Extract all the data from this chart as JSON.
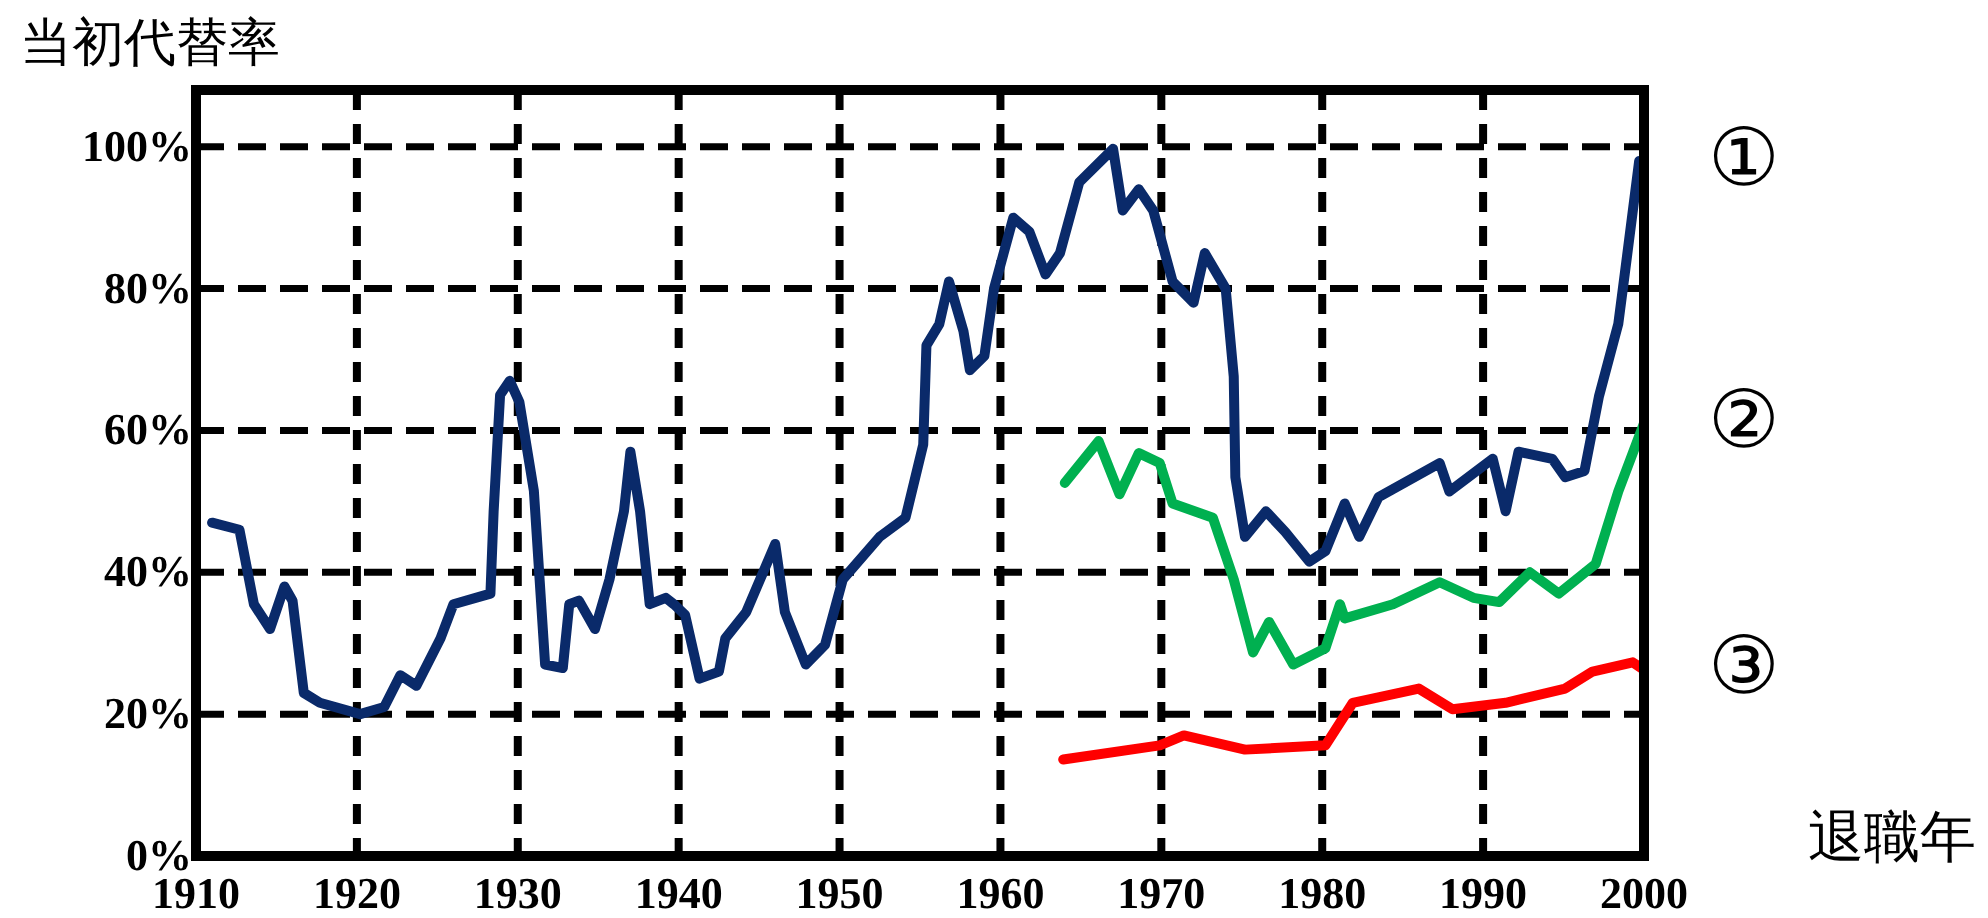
{
  "chart_data": {
    "type": "line",
    "ylabel": "当初代替率",
    "xlabel": "退職年",
    "xlim": [
      1910,
      2000
    ],
    "xticks": [
      1910,
      1920,
      1930,
      1940,
      1950,
      1960,
      1970,
      1980,
      1990,
      2000
    ],
    "ylim": [
      0,
      108
    ],
    "yticks": [
      {
        "value": 0,
        "label": "0%"
      },
      {
        "value": 20,
        "label": "20%"
      },
      {
        "value": 40,
        "label": "40%"
      },
      {
        "value": 60,
        "label": "60%"
      },
      {
        "value": 80,
        "label": "80%"
      },
      {
        "value": 100,
        "label": "100%"
      }
    ],
    "grid": true,
    "series": [
      {
        "name": "①",
        "color": "#0a2a6a",
        "x": [
          1911,
          1912.7,
          1913.6,
          1914.6,
          1915.5,
          1916,
          1916.7,
          1917.7,
          1920.2,
          1921.7,
          1922.7,
          1923.7,
          1925.2,
          1926,
          1928.3,
          1928.5,
          1928.9,
          1929.5,
          1930.1,
          1931,
          1931.7,
          1932.8,
          1933.2,
          1933.8,
          1934.8,
          1935.7,
          1936.6,
          1937,
          1937.6,
          1938.2,
          1939.2,
          1939.7,
          1940.4,
          1941.3,
          1942.5,
          1942.9,
          1944.2,
          1946,
          1946.6,
          1947.9,
          1949.1,
          1950.2,
          1952.5,
          1954.1,
          1955.2,
          1955.4,
          1956.2,
          1956.8,
          1957.7,
          1958.1,
          1959,
          1959.6,
          1960.8,
          1961.8,
          1962.8,
          1963.7,
          1964.9,
          1967,
          1967.6,
          1968.6,
          1969.5,
          1970.7,
          1972,
          1972.7,
          1974,
          1974.5,
          1974.6,
          1975.2,
          1976.5,
          1977.7,
          1979.2,
          1980.2,
          1981.4,
          1982.3,
          1983.5,
          1987.3,
          1987.9,
          1990.6,
          1991.4,
          1992.2,
          1994.3,
          1995.1,
          1996.3,
          1997.2,
          1998.4,
          1998.8,
          1999.7
        ],
        "values": [
          47,
          46,
          35.5,
          32,
          38,
          36,
          23,
          21.6,
          20,
          21,
          25.5,
          24,
          30.7,
          35.5,
          37,
          48.6,
          65,
          67,
          64,
          51.5,
          27,
          26.5,
          35.5,
          36,
          32,
          39,
          48.6,
          57,
          48.6,
          35.5,
          36.4,
          35.5,
          34,
          25,
          26,
          30.7,
          34.4,
          44,
          34.4,
          27,
          29.8,
          39,
          45,
          47.7,
          58,
          72,
          75,
          81,
          74,
          68.5,
          70.5,
          80,
          90,
          88,
          82,
          85,
          95,
          99.7,
          91,
          94,
          91,
          81,
          78,
          85,
          80,
          67.6,
          53.4,
          45,
          48.6,
          45.7,
          41.5,
          43,
          49.7,
          45,
          50.6,
          55.4,
          51.4,
          56,
          48.6,
          57,
          56,
          53.4,
          54.3,
          64.8,
          75,
          82,
          98
        ]
      },
      {
        "name": "②",
        "color": "#00b050",
        "x": [
          1964,
          1966.1,
          1967.4,
          1968.6,
          1969.9,
          1970.7,
          1973.2,
          1974.5,
          1975.7,
          1976.7,
          1978.2,
          1980.2,
          1981.1,
          1981.4,
          1984.4,
          1987.3,
          1989.4,
          1991,
          1992.9,
          1994.7,
          1997,
          1998.4,
          2000
        ],
        "values": [
          52.6,
          58.5,
          51,
          56.8,
          55.4,
          49.7,
          47.7,
          39,
          28.7,
          33,
          27,
          29.3,
          35.5,
          33.5,
          35.5,
          38.6,
          36.4,
          35.8,
          40,
          37,
          41.2,
          51.4,
          61
        ]
      },
      {
        "name": "③",
        "color": "#ff0000",
        "x": [
          1963.9,
          1969.9,
          1971.4,
          1975.2,
          1980.2,
          1981.9,
          1986,
          1988.1,
          1991.4,
          1995.1,
          1996.8,
          1999.3,
          1999.9
        ],
        "values": [
          13.6,
          15.6,
          17,
          15,
          15.6,
          21.6,
          23.6,
          20.7,
          21.6,
          23.6,
          26,
          27.3,
          26.4
        ]
      }
    ]
  }
}
